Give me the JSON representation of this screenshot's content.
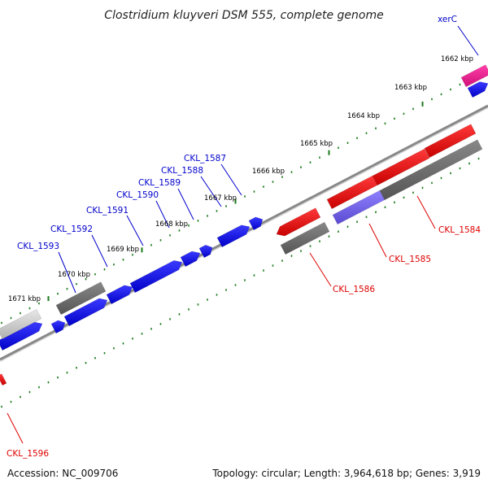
{
  "title": "Clostridium kluyveri DSM 555, complete genome",
  "footer": {
    "accession": "Accession: NC_009706",
    "summary": "Topology: circular; Length: 3,964,618 bp; Genes: 3,919"
  },
  "colors": {
    "backbone": "#888888",
    "tick": "#1a7a1a",
    "label_blue": "#0000cc",
    "label_red": "#dd0000",
    "gene_blue": "#0000ee",
    "gene_red": "#ee0000",
    "gene_gray": "#666666",
    "gene_purple": "#6a5acd",
    "gene_magenta": "#ee1493",
    "gene_lightgray": "#cccccc"
  },
  "ticks": [
    {
      "label": "1662 kbp"
    },
    {
      "label": "1663 kbp"
    },
    {
      "label": "1664 kbp"
    },
    {
      "label": "1665 kbp"
    },
    {
      "label": "1666 kbp"
    },
    {
      "label": "1667 kbp"
    },
    {
      "label": "1668 kbp"
    },
    {
      "label": "1669 kbp"
    },
    {
      "label": "1670 kbp"
    },
    {
      "label": "1671 kbp"
    }
  ],
  "gene_labels": [
    {
      "name": "xerC",
      "color": "blue"
    },
    {
      "name": "CKL_1587",
      "color": "blue"
    },
    {
      "name": "CKL_1588",
      "color": "blue"
    },
    {
      "name": "CKL_1589",
      "color": "blue"
    },
    {
      "name": "CKL_1590",
      "color": "blue"
    },
    {
      "name": "CKL_1591",
      "color": "blue"
    },
    {
      "name": "CKL_1592",
      "color": "blue"
    },
    {
      "name": "CKL_1593",
      "color": "blue"
    },
    {
      "name": "CKL_1584",
      "color": "red"
    },
    {
      "name": "CKL_1585",
      "color": "red"
    },
    {
      "name": "CKL_1586",
      "color": "red"
    },
    {
      "name": "CKL_1596",
      "color": "red"
    }
  ]
}
